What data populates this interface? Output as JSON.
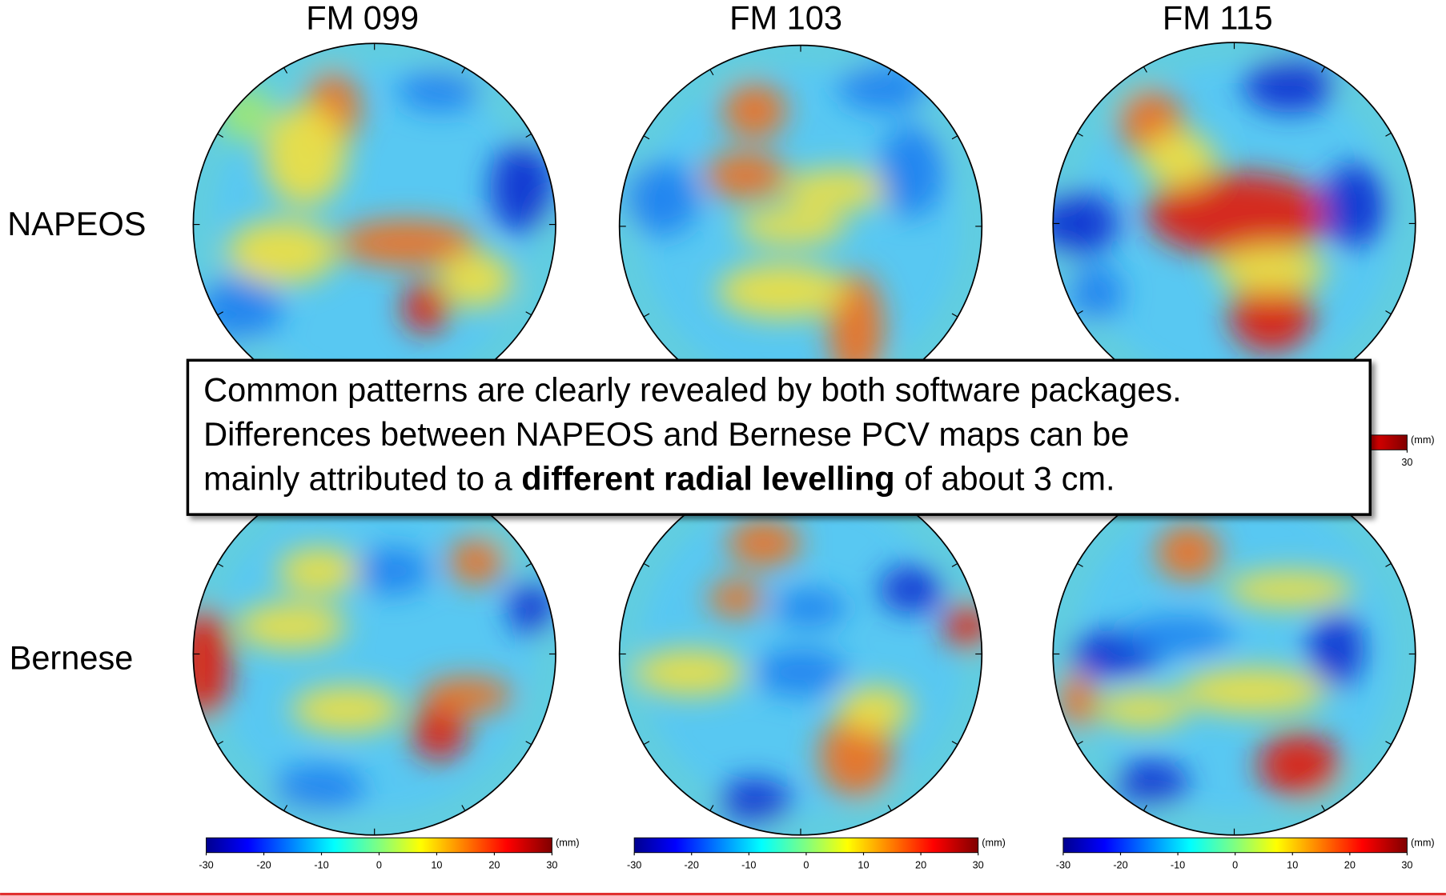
{
  "columns": [
    "FM 099",
    "FM 103",
    "FM 115"
  ],
  "rows": [
    "NAPEOS",
    "Bernese"
  ],
  "callout": {
    "line1": "Common patterns are clearly revealed by both software packages.",
    "line2": "Differences between NAPEOS and Bernese PCV maps can be",
    "line3_before": "mainly attributed to a ",
    "line3_bold": "different radial levelling",
    "line3_after": " of about 3 cm."
  },
  "colorbar": {
    "unit": "(mm)",
    "ticks": [
      -30,
      -20,
      -10,
      0,
      10,
      20,
      30
    ]
  }
}
